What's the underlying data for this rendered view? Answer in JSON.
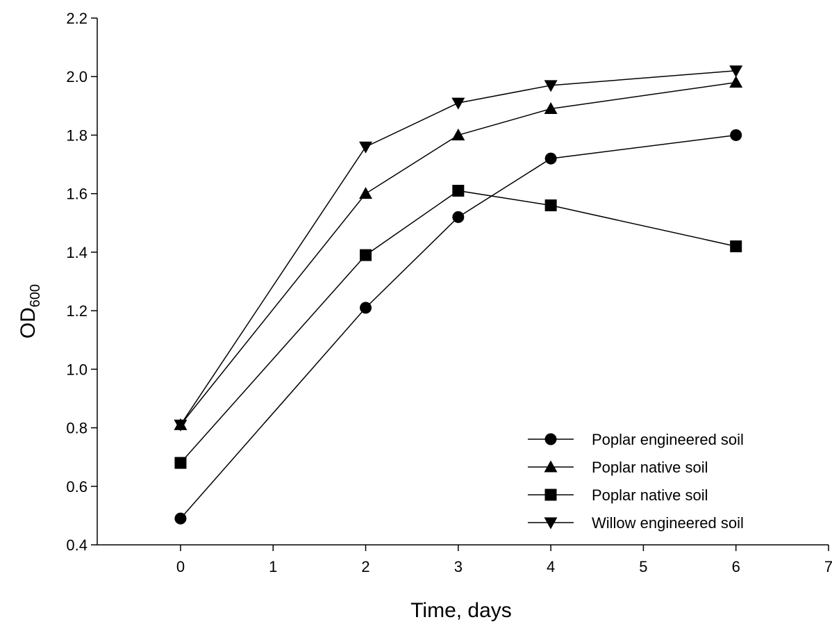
{
  "chart_data": {
    "type": "line",
    "title": "",
    "xlabel": "Time, days",
    "ylabel_main": "OD",
    "ylabel_sub": "600",
    "xlim": [
      -0.9,
      7
    ],
    "ylim": [
      0.4,
      2.2
    ],
    "xticks": [
      0,
      1,
      2,
      3,
      4,
      5,
      6,
      7
    ],
    "yticks": [
      0.4,
      0.6,
      0.8,
      1.0,
      1.2,
      1.4,
      1.6,
      1.8,
      2.0,
      2.2
    ],
    "xtick_labels": [
      "0",
      "1",
      "2",
      "3",
      "4",
      "5",
      "6",
      "7"
    ],
    "ytick_labels": [
      "0.4",
      "0.6",
      "0.8",
      "1.0",
      "1.2",
      "1.4",
      "1.6",
      "1.8",
      "2.0",
      "2.2"
    ],
    "grid": false,
    "legend_position": "bottom-right",
    "x": [
      0,
      2,
      3,
      4,
      6
    ],
    "series": [
      {
        "name": "Poplar engineered soil",
        "marker": "circle",
        "values": [
          0.49,
          1.21,
          1.52,
          1.72,
          1.8
        ]
      },
      {
        "name": "Poplar native soil",
        "marker": "triangle-up",
        "values": [
          0.81,
          1.6,
          1.8,
          1.89,
          1.98
        ]
      },
      {
        "name": "Poplar native soil",
        "marker": "square",
        "values": [
          0.68,
          1.39,
          1.61,
          1.56,
          1.42
        ]
      },
      {
        "name": "Willow engineered soil",
        "marker": "triangle-down",
        "values": [
          0.81,
          1.76,
          1.91,
          1.97,
          2.02
        ]
      }
    ]
  }
}
